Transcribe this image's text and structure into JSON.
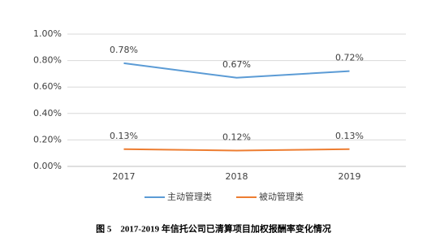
{
  "chart_data": {
    "type": "line",
    "caption": "图 5　2017-2019 年信托公司已清算项目加权报酬率变化情况",
    "categories": [
      "2017",
      "2018",
      "2019"
    ],
    "series": [
      {
        "name": "主动管理类",
        "color": "#5b9bd5",
        "values": [
          0.78,
          0.67,
          0.72
        ],
        "value_labels": [
          "0.78%",
          "0.67%",
          "0.72%"
        ]
      },
      {
        "name": "被动管理类",
        "color": "#ed7d31",
        "values": [
          0.13,
          0.12,
          0.13
        ],
        "value_labels": [
          "0.13%",
          "0.12%",
          "0.13%"
        ]
      }
    ],
    "ylim": [
      0,
      1
    ],
    "yticks": [
      {
        "value": 0,
        "label": "0.00%"
      },
      {
        "value": 0.2,
        "label": "0.20%"
      },
      {
        "value": 0.4,
        "label": "0.40%"
      },
      {
        "value": 0.6,
        "label": "0.60%"
      },
      {
        "value": 0.8,
        "label": "0.80%"
      },
      {
        "value": 1,
        "label": "1.00%"
      }
    ],
    "grid": true,
    "legend": "bottom"
  }
}
